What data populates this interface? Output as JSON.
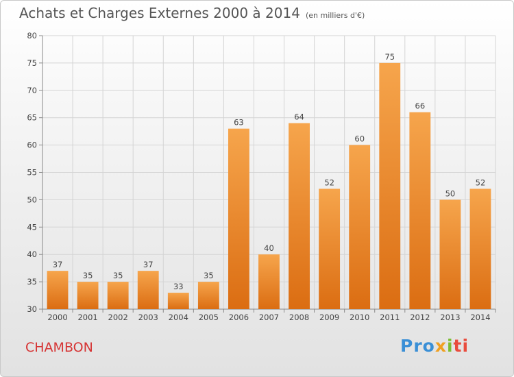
{
  "header": {
    "title": "Achats et Charges Externes 2000 à 2014",
    "subtitle": "(en milliers d'€)"
  },
  "footer": {
    "commune": "CHAMBON",
    "logo_text": "Proxiti"
  },
  "colors": {
    "bar_light": "#f6a54c",
    "bar_dark": "#db6d12",
    "grid": "#d4d4d4",
    "commune": "#d63434"
  },
  "chart_data": {
    "type": "bar",
    "title": "Achats et Charges Externes 2000 à 2014",
    "subtitle": "(en milliers d'€)",
    "xlabel": "",
    "ylabel": "",
    "categories": [
      "2000",
      "2001",
      "2002",
      "2003",
      "2004",
      "2005",
      "2006",
      "2007",
      "2008",
      "2009",
      "2010",
      "2011",
      "2012",
      "2013",
      "2014"
    ],
    "values": [
      37,
      35,
      35,
      37,
      33,
      35,
      63,
      40,
      64,
      52,
      60,
      75,
      66,
      50,
      52
    ],
    "ylim": [
      30,
      80
    ],
    "yticks": [
      30,
      35,
      40,
      45,
      50,
      55,
      60,
      65,
      70,
      75,
      80
    ],
    "grid": true,
    "legend": "none"
  }
}
